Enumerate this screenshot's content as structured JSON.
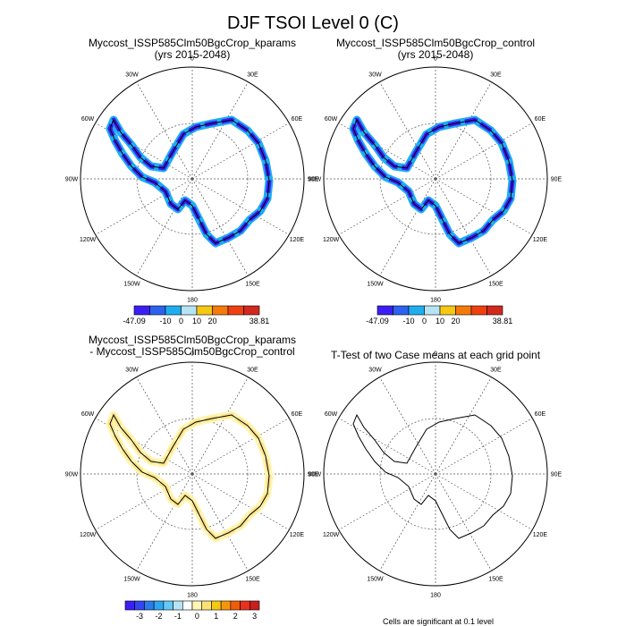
{
  "title": "DJF TSOI Level 0 (C)",
  "longitude_labels": [
    "0",
    "30E",
    "60E",
    "90E",
    "120E",
    "150E",
    "180",
    "150W",
    "120W",
    "90W",
    "60W",
    "30W"
  ],
  "panels": [
    {
      "title": [
        "Myccost_ISSP585Clm50BgcCrop_kparams",
        "(yrs 2015-2048)"
      ]
    },
    {
      "title": [
        "Myccost_ISSP585Clm50BgcCrop_control",
        "(yrs 2015-2048)"
      ]
    },
    {
      "title": [
        "Myccost_ISSP585Clm50BgcCrop_kparams",
        "- Myccost_ISSP585Clm50BgcCrop_control"
      ]
    },
    {
      "title": [
        "T-Test of two Case means at each grid point"
      ]
    }
  ],
  "colorbars": [
    {
      "labels": [
        "-47.09",
        "-10",
        "0",
        "10",
        "20",
        "38.81"
      ],
      "colors": [
        "#3c1ef5",
        "#2c62ee",
        "#1eaef0",
        "#b6e4f5",
        "#f5c814",
        "#f57a0a",
        "#f04010",
        "#d2281e"
      ]
    },
    {
      "labels": [
        "-47.09",
        "-10",
        "0",
        "10",
        "20",
        "38.81"
      ],
      "colors": [
        "#3c1ef5",
        "#2c62ee",
        "#1eaef0",
        "#b6e4f5",
        "#f5c814",
        "#f57a0a",
        "#f04010",
        "#d2281e"
      ]
    },
    {
      "labels": [
        "-3",
        "-2",
        "-1",
        "0",
        "1",
        "2",
        "3"
      ],
      "colors": [
        "#3c1ef5",
        "#3246f0",
        "#2c7aee",
        "#2ca6f0",
        "#64c8f5",
        "#b6e4f5",
        "#ffffff",
        "#fff5b4",
        "#fae178",
        "#f5c814",
        "#f5960a",
        "#f05a0a",
        "#e6321e",
        "#c81e1e"
      ]
    }
  ],
  "note": "Cells are significant at 0.1 level"
}
